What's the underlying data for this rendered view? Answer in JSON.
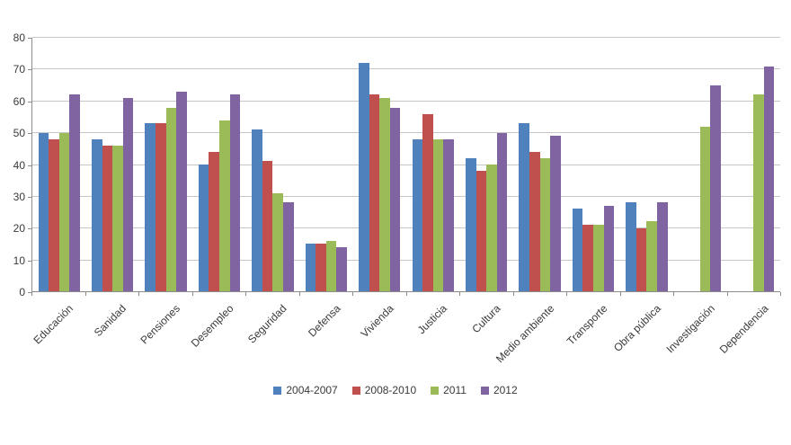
{
  "chart": {
    "background_color": "#ffffff",
    "text_color": "#3a3a3a",
    "gridline_color": "#c6c6c6",
    "axis_color": "#8c8c8c"
  },
  "chart_data": {
    "type": "bar",
    "title": "",
    "xlabel": "",
    "ylabel": "",
    "categories": [
      "Educación",
      "Sanidad",
      "Pensiones",
      "Desempleo",
      "Seguridad",
      "Defensa",
      "Vivienda",
      "Justicia",
      "Cultura",
      "Medio ambiente",
      "Transporte",
      "Obra pública",
      "Investigación",
      "Dependencia"
    ],
    "series": [
      {
        "name": "2004-2007",
        "color": "#4F81BD",
        "values": [
          50,
          48,
          53,
          40,
          51,
          15,
          72,
          48,
          42,
          53,
          26,
          28,
          null,
          null
        ]
      },
      {
        "name": "2008-2010",
        "color": "#C0504D",
        "values": [
          48,
          46,
          53,
          44,
          41,
          15,
          62,
          56,
          38,
          44,
          21,
          20,
          null,
          null
        ]
      },
      {
        "name": "2011",
        "color": "#9BBB59",
        "values": [
          50,
          46,
          58,
          54,
          31,
          16,
          61,
          48,
          40,
          42,
          21,
          22,
          52,
          62
        ]
      },
      {
        "name": "2012",
        "color": "#8064A2",
        "values": [
          62,
          61,
          63,
          62,
          28,
          14,
          58,
          48,
          50,
          49,
          27,
          28,
          65,
          71
        ]
      }
    ],
    "ylim": [
      0,
      80
    ],
    "ytick_step": 10,
    "y_tick_labels": [
      "0",
      "10",
      "20",
      "30",
      "40",
      "50",
      "60",
      "70",
      "80"
    ],
    "grid": true,
    "legend_position": "bottom",
    "bar_orientation": "vertical",
    "x_label_rotation_deg": 45
  }
}
